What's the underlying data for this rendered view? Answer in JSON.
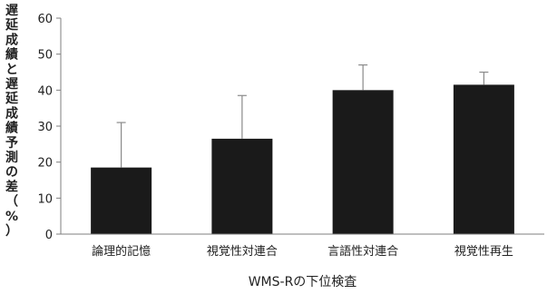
{
  "chart_data": {
    "type": "bar",
    "categories": [
      "論理的記憶",
      "視覚性対連合",
      "言語性対連合",
      "視覚性再生"
    ],
    "values": [
      18.5,
      26.5,
      40,
      41.5
    ],
    "error_upper": [
      31,
      38.5,
      47,
      45
    ],
    "xlabel": "WMS-Rの下位検査",
    "ylabel": "遅延成績と遅延成績予測の差（%）",
    "ylim": [
      0,
      60
    ],
    "yticks": [
      0,
      10,
      20,
      30,
      40,
      50,
      60
    ],
    "grid": false,
    "bar_color": "#1a1a1a",
    "axis_color": "#7f7f7f",
    "error_color": "#8a8a8a"
  }
}
